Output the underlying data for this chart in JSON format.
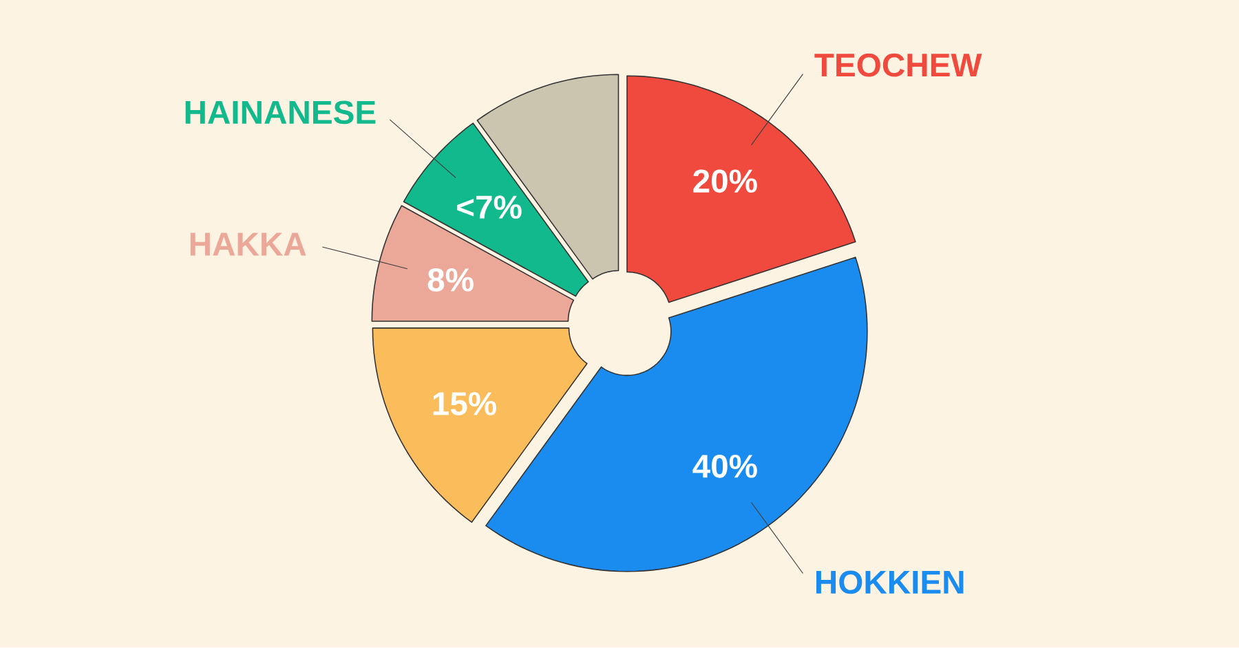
{
  "chart_data": {
    "type": "donut",
    "categories": [
      "TEOCHEW",
      "HOKKIEN",
      null,
      "HAKKA",
      "HAINANESE",
      null
    ],
    "values": [
      20,
      40,
      15,
      8,
      7,
      10
    ],
    "value_labels": [
      "20%",
      "40%",
      "15%",
      "8%",
      "<7%",
      null
    ],
    "colors": [
      "#f04a3e",
      "#1a8cf0",
      "#fbbd5c",
      "#eba898",
      "#12b98c",
      "#cbc5b0"
    ]
  }
}
